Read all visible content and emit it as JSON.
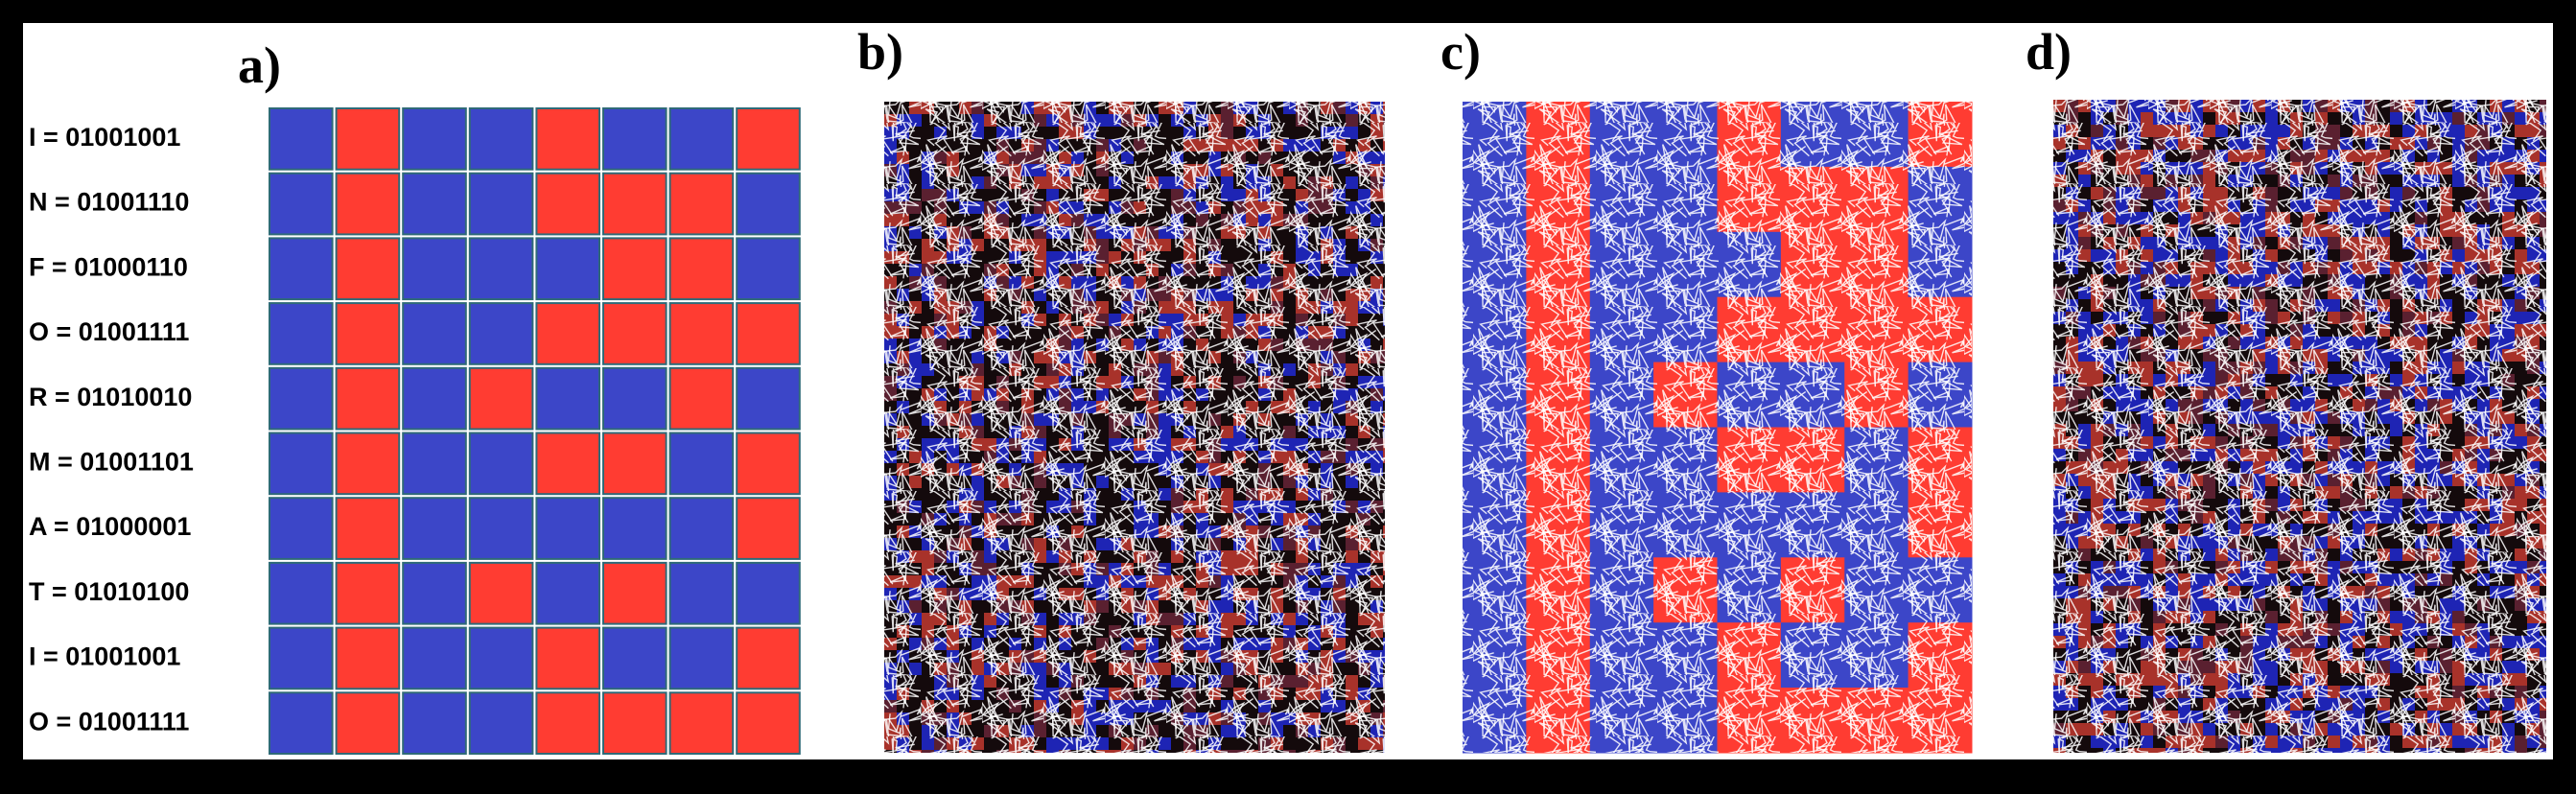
{
  "panels": {
    "a": "a)",
    "b": "b)",
    "c": "c)",
    "d": "d)"
  },
  "rows": [
    {
      "label": "I = 01001001",
      "bits": [
        0,
        1,
        0,
        0,
        1,
        0,
        0,
        1
      ]
    },
    {
      "label": "N = 01001110",
      "bits": [
        0,
        1,
        0,
        0,
        1,
        1,
        1,
        0
      ]
    },
    {
      "label": "F = 01000110",
      "bits": [
        0,
        1,
        0,
        0,
        0,
        1,
        1,
        0
      ]
    },
    {
      "label": "O = 01001111",
      "bits": [
        0,
        1,
        0,
        0,
        1,
        1,
        1,
        1
      ]
    },
    {
      "label": "R = 01010010",
      "bits": [
        0,
        1,
        0,
        1,
        0,
        0,
        1,
        0
      ]
    },
    {
      "label": "M = 01001101",
      "bits": [
        0,
        1,
        0,
        0,
        1,
        1,
        0,
        1
      ]
    },
    {
      "label": "A = 01000001",
      "bits": [
        0,
        1,
        0,
        0,
        0,
        0,
        0,
        1
      ]
    },
    {
      "label": "T = 01010100",
      "bits": [
        0,
        1,
        0,
        1,
        0,
        1,
        0,
        0
      ]
    },
    {
      "label": "I = 01001001",
      "bits": [
        0,
        1,
        0,
        0,
        1,
        0,
        0,
        1
      ]
    },
    {
      "label": "O = 01001111",
      "bits": [
        0,
        1,
        0,
        0,
        1,
        1,
        1,
        1
      ]
    }
  ]
}
